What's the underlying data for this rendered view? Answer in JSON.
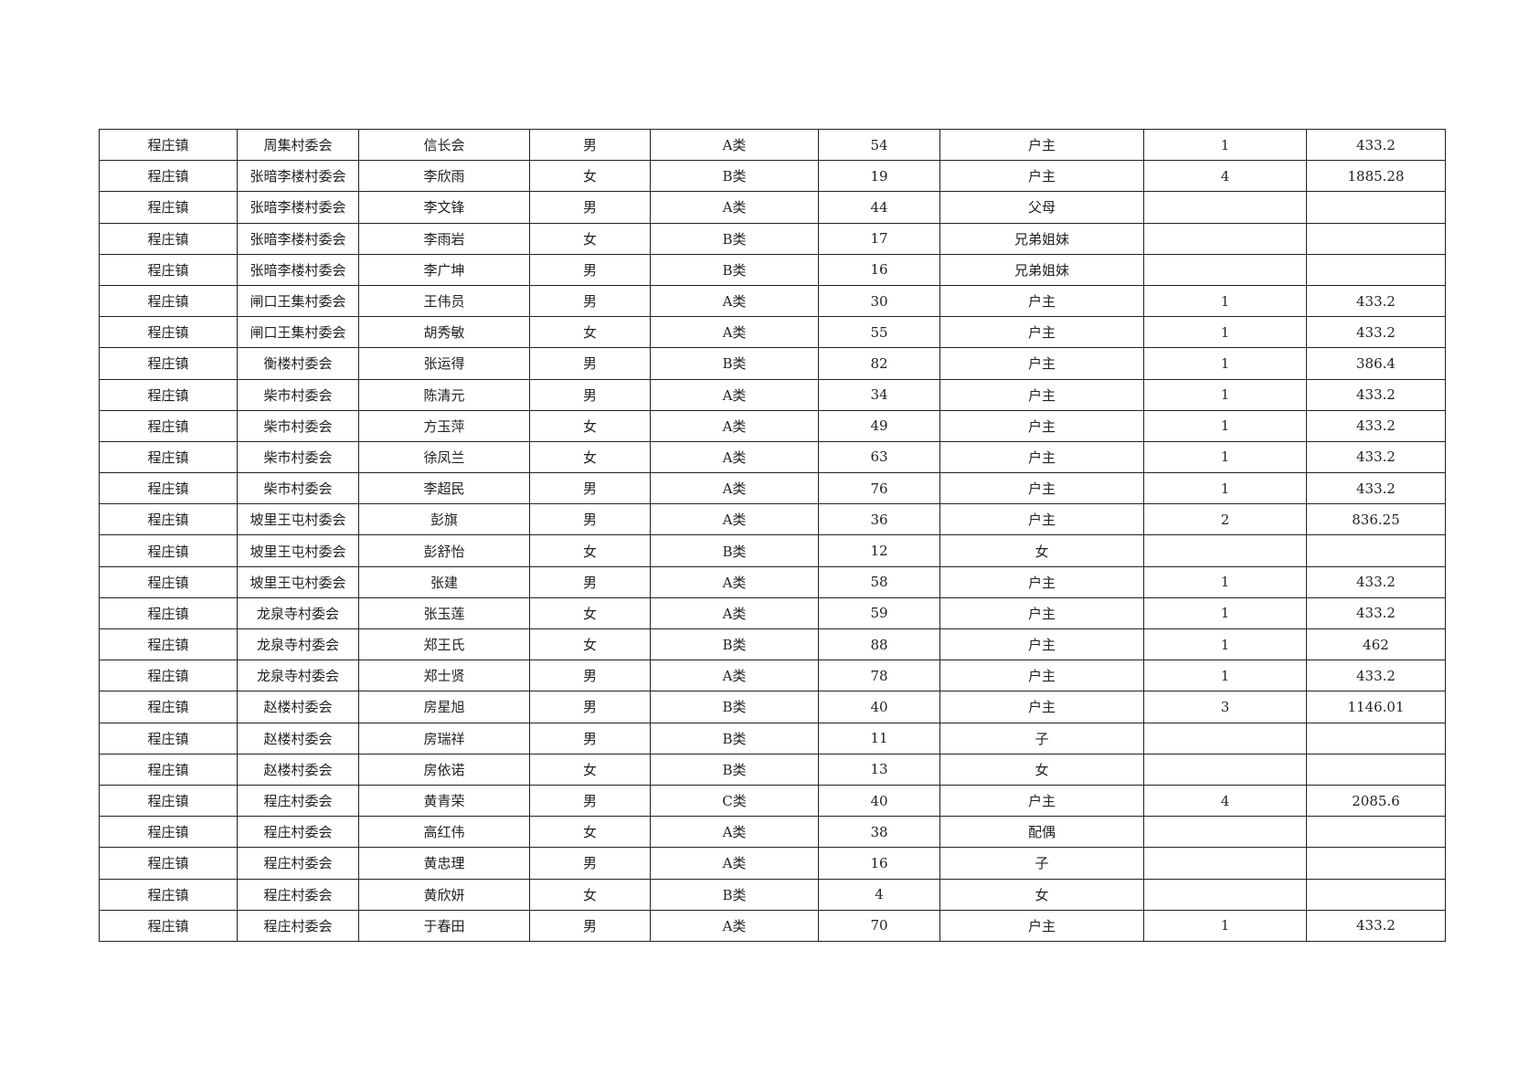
{
  "table": {
    "rows": [
      [
        "程庄镇",
        "周集村委会",
        "信长会",
        "男",
        "A类",
        "54",
        "户主",
        "1",
        "433.2"
      ],
      [
        "程庄镇",
        "张暗李楼村委会",
        "李欣雨",
        "女",
        "B类",
        "19",
        "户主",
        "4",
        "1885.28"
      ],
      [
        "程庄镇",
        "张暗李楼村委会",
        "李文锋",
        "男",
        "A类",
        "44",
        "父母",
        "",
        ""
      ],
      [
        "程庄镇",
        "张暗李楼村委会",
        "李雨岩",
        "女",
        "B类",
        "17",
        "兄弟姐妹",
        "",
        ""
      ],
      [
        "程庄镇",
        "张暗李楼村委会",
        "李广坤",
        "男",
        "B类",
        "16",
        "兄弟姐妹",
        "",
        ""
      ],
      [
        "程庄镇",
        "闸口王集村委会",
        "王伟员",
        "男",
        "A类",
        "30",
        "户主",
        "1",
        "433.2"
      ],
      [
        "程庄镇",
        "闸口王集村委会",
        "胡秀敏",
        "女",
        "A类",
        "55",
        "户主",
        "1",
        "433.2"
      ],
      [
        "程庄镇",
        "衡楼村委会",
        "张运得",
        "男",
        "B类",
        "82",
        "户主",
        "1",
        "386.4"
      ],
      [
        "程庄镇",
        "柴市村委会",
        "陈清元",
        "男",
        "A类",
        "34",
        "户主",
        "1",
        "433.2"
      ],
      [
        "程庄镇",
        "柴市村委会",
        "方玉萍",
        "女",
        "A类",
        "49",
        "户主",
        "1",
        "433.2"
      ],
      [
        "程庄镇",
        "柴市村委会",
        "徐凤兰",
        "女",
        "A类",
        "63",
        "户主",
        "1",
        "433.2"
      ],
      [
        "程庄镇",
        "柴市村委会",
        "李超民",
        "男",
        "A类",
        "76",
        "户主",
        "1",
        "433.2"
      ],
      [
        "程庄镇",
        "坡里王屯村委会",
        "彭旗",
        "男",
        "A类",
        "36",
        "户主",
        "2",
        "836.25"
      ],
      [
        "程庄镇",
        "坡里王屯村委会",
        "彭舒怡",
        "女",
        "B类",
        "12",
        "女",
        "",
        ""
      ],
      [
        "程庄镇",
        "坡里王屯村委会",
        "张建",
        "男",
        "A类",
        "58",
        "户主",
        "1",
        "433.2"
      ],
      [
        "程庄镇",
        "龙泉寺村委会",
        "张玉莲",
        "女",
        "A类",
        "59",
        "户主",
        "1",
        "433.2"
      ],
      [
        "程庄镇",
        "龙泉寺村委会",
        "郑王氏",
        "女",
        "B类",
        "88",
        "户主",
        "1",
        "462"
      ],
      [
        "程庄镇",
        "龙泉寺村委会",
        "郑士贤",
        "男",
        "A类",
        "78",
        "户主",
        "1",
        "433.2"
      ],
      [
        "程庄镇",
        "赵楼村委会",
        "房星旭",
        "男",
        "B类",
        "40",
        "户主",
        "3",
        "1146.01"
      ],
      [
        "程庄镇",
        "赵楼村委会",
        "房瑞祥",
        "男",
        "B类",
        "11",
        "子",
        "",
        ""
      ],
      [
        "程庄镇",
        "赵楼村委会",
        "房依诺",
        "女",
        "B类",
        "13",
        "女",
        "",
        ""
      ],
      [
        "程庄镇",
        "程庄村委会",
        "黄青荣",
        "男",
        "C类",
        "40",
        "户主",
        "4",
        "2085.6"
      ],
      [
        "程庄镇",
        "程庄村委会",
        "高红伟",
        "女",
        "A类",
        "38",
        "配偶",
        "",
        ""
      ],
      [
        "程庄镇",
        "程庄村委会",
        "黄忠理",
        "男",
        "A类",
        "16",
        "子",
        "",
        ""
      ],
      [
        "程庄镇",
        "程庄村委会",
        "黄欣妍",
        "女",
        "B类",
        "4",
        "女",
        "",
        ""
      ],
      [
        "程庄镇",
        "程庄村委会",
        "于春田",
        "男",
        "A类",
        "70",
        "户主",
        "1",
        "433.2"
      ]
    ]
  }
}
